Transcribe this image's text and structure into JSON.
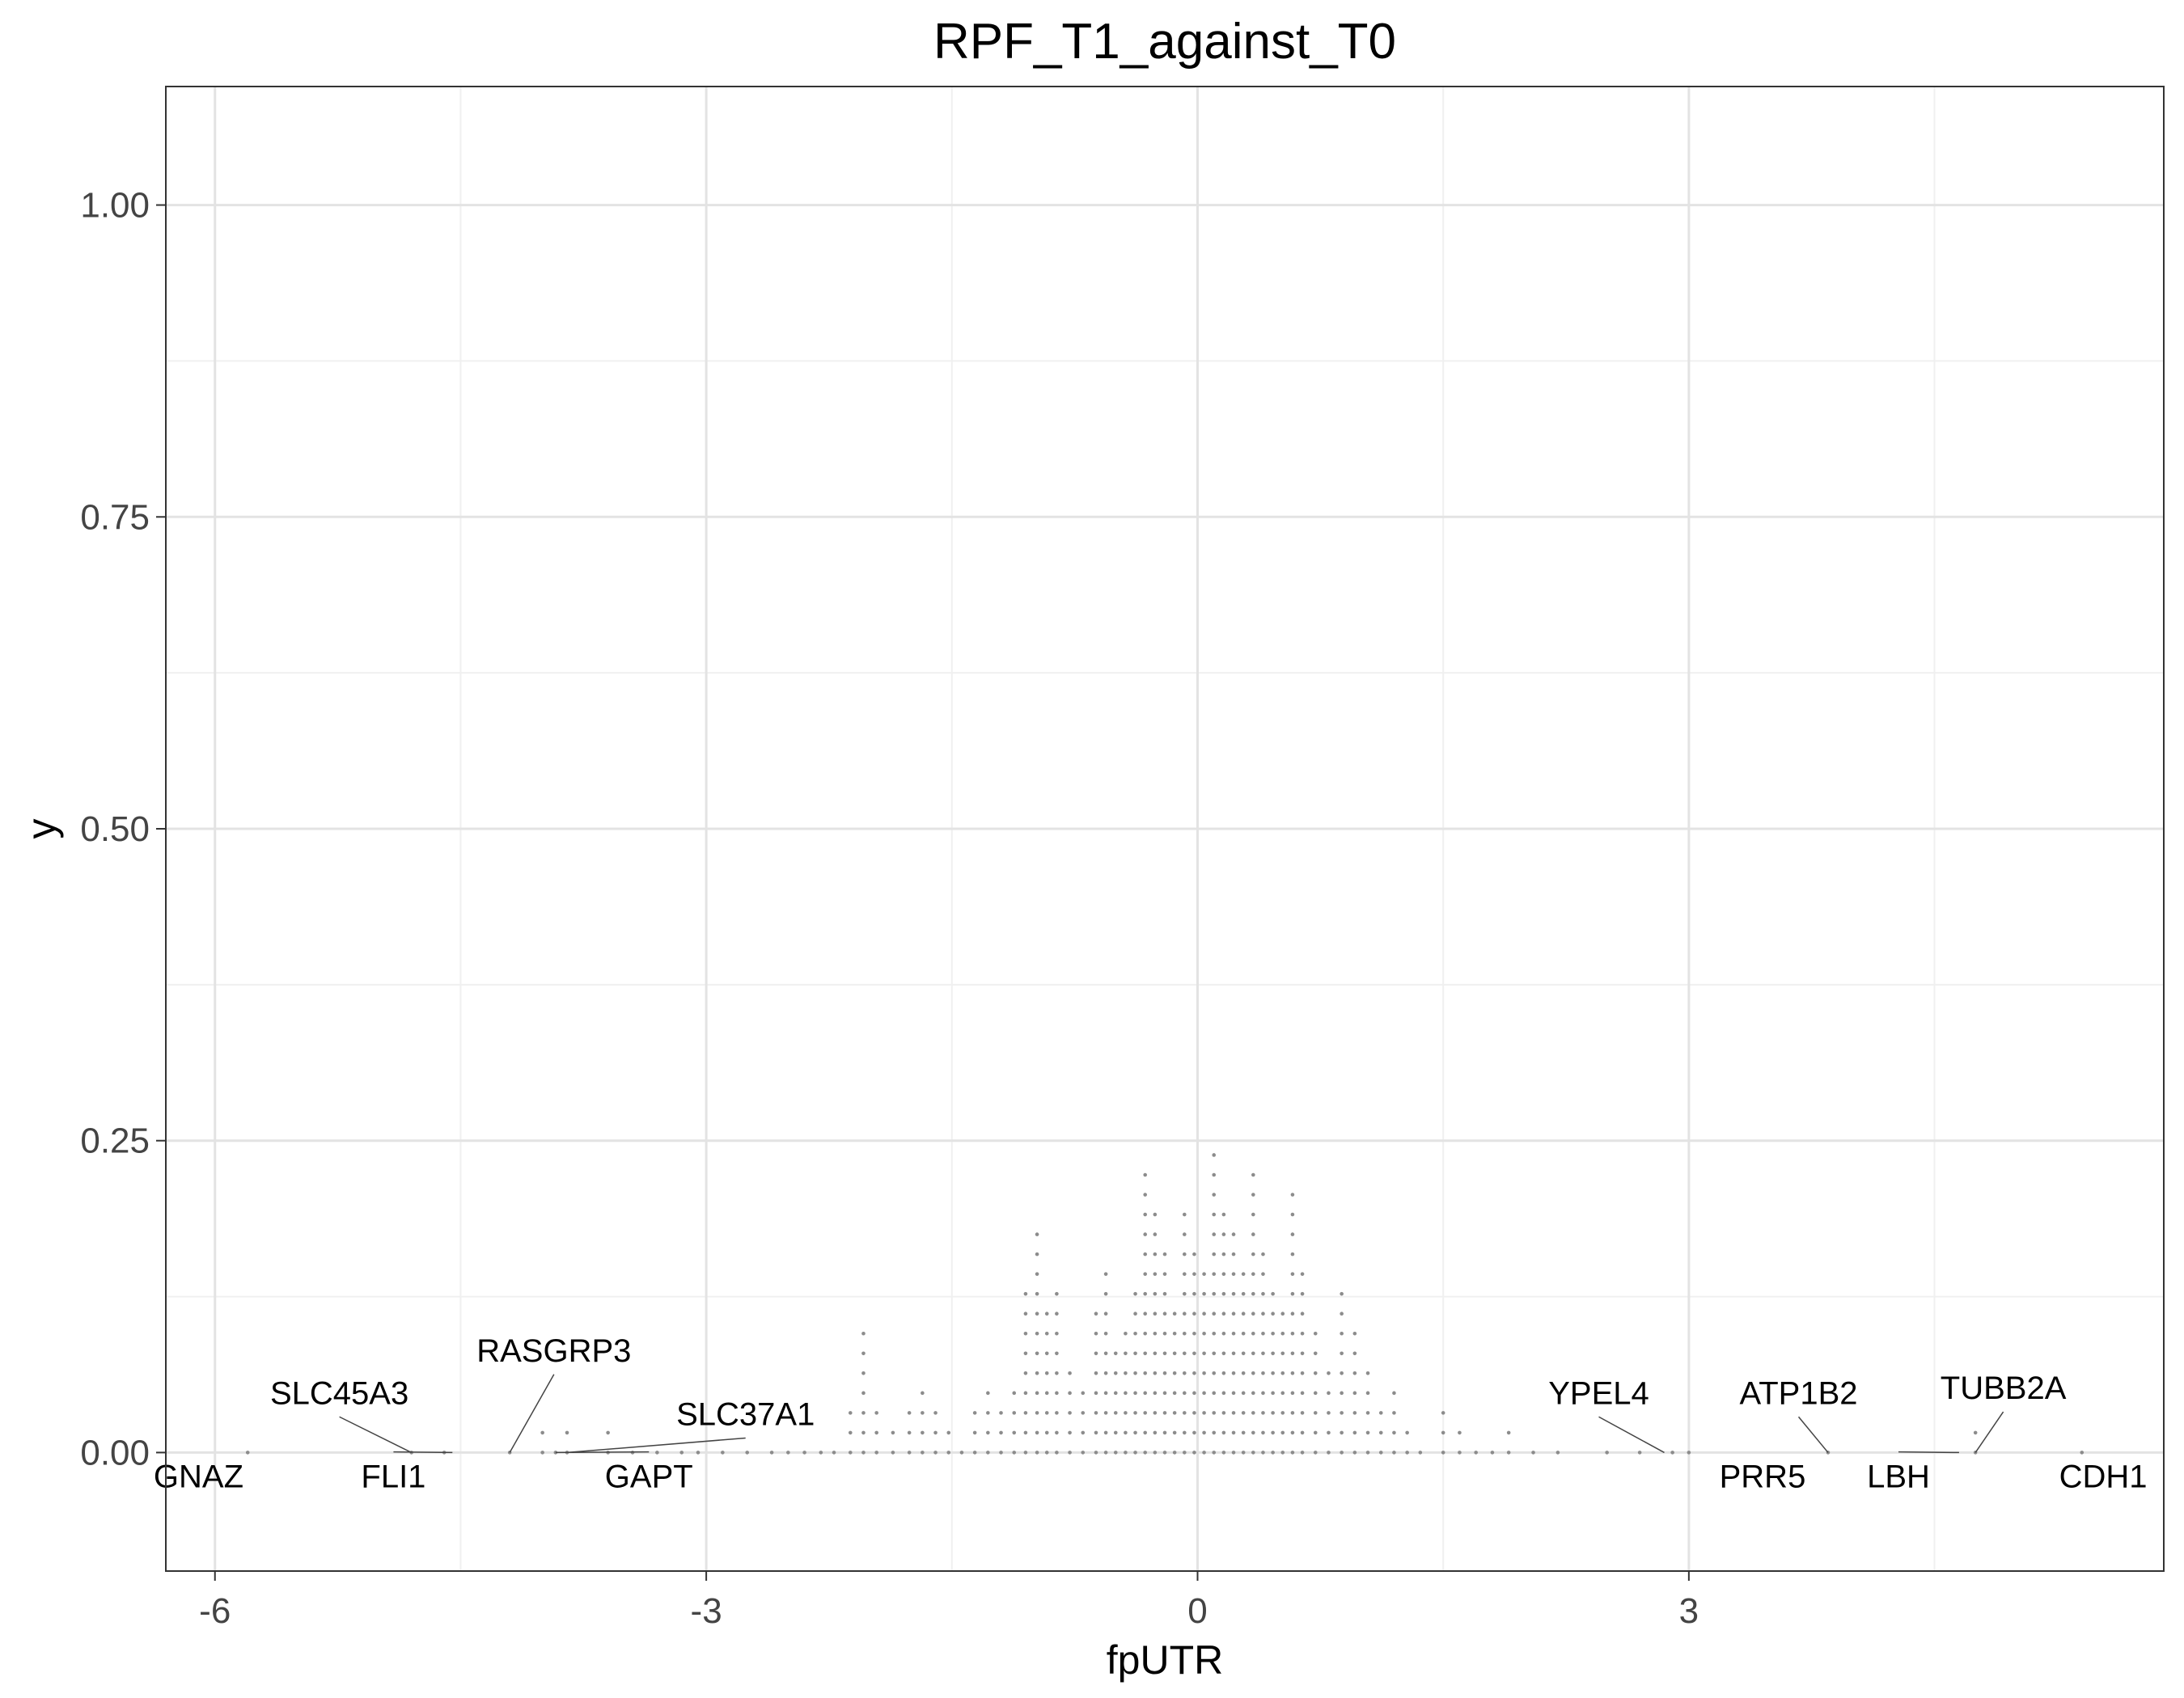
{
  "chart_data": {
    "type": "scatter",
    "title": "RPF_T1_against_T0",
    "xlabel": "fpUTR",
    "ylabel": "y",
    "xlim": [
      -6.3,
      5.9
    ],
    "ylim": [
      -0.095,
      1.095
    ],
    "x_ticks": [
      {
        "value": -6,
        "label": "-6"
      },
      {
        "value": -3,
        "label": "-3"
      },
      {
        "value": 0,
        "label": "0"
      },
      {
        "value": 3,
        "label": "3"
      }
    ],
    "y_ticks": [
      {
        "value": 0,
        "label": "0.00"
      },
      {
        "value": 0.25,
        "label": "0.25"
      },
      {
        "value": 0.5,
        "label": "0.50"
      },
      {
        "value": 0.75,
        "label": "0.75"
      },
      {
        "value": 1.0,
        "label": "1.00"
      }
    ],
    "grid": true,
    "point_color": "#8c8c8c",
    "dot_stack_step": 0.0159,
    "stacks": [
      {
        "x": -5.8,
        "n": 1
      },
      {
        "x": -4.8,
        "n": 1
      },
      {
        "x": -4.6,
        "n": 1
      },
      {
        "x": -4.2,
        "n": 1
      },
      {
        "x": -4.0,
        "n": 2
      },
      {
        "x": -3.92,
        "n": 1
      },
      {
        "x": -3.85,
        "n": 2
      },
      {
        "x": -3.6,
        "n": 2
      },
      {
        "x": -3.45,
        "n": 1
      },
      {
        "x": -3.3,
        "n": 1
      },
      {
        "x": -3.15,
        "n": 1
      },
      {
        "x": -3.05,
        "n": 1
      },
      {
        "x": -2.9,
        "n": 1
      },
      {
        "x": -2.75,
        "n": 1
      },
      {
        "x": -2.6,
        "n": 1
      },
      {
        "x": -2.5,
        "n": 1
      },
      {
        "x": -2.4,
        "n": 1
      },
      {
        "x": -2.3,
        "n": 1
      },
      {
        "x": -2.22,
        "n": 1
      },
      {
        "x": -2.12,
        "n": 3
      },
      {
        "x": -2.04,
        "n": 7
      },
      {
        "x": -1.96,
        "n": 3
      },
      {
        "x": -1.86,
        "n": 2
      },
      {
        "x": -1.76,
        "n": 3
      },
      {
        "x": -1.68,
        "n": 4
      },
      {
        "x": -1.6,
        "n": 3
      },
      {
        "x": -1.52,
        "n": 2
      },
      {
        "x": -1.44,
        "n": 1
      },
      {
        "x": -1.36,
        "n": 3
      },
      {
        "x": -1.28,
        "n": 4
      },
      {
        "x": -1.2,
        "n": 3
      },
      {
        "x": -1.12,
        "n": 4
      },
      {
        "x": -1.05,
        "n": 9
      },
      {
        "x": -0.98,
        "n": 12
      },
      {
        "x": -0.92,
        "n": 8
      },
      {
        "x": -0.86,
        "n": 9
      },
      {
        "x": -0.78,
        "n": 5
      },
      {
        "x": -0.7,
        "n": 4
      },
      {
        "x": -0.62,
        "n": 8
      },
      {
        "x": -0.56,
        "n": 10
      },
      {
        "x": -0.5,
        "n": 6
      },
      {
        "x": -0.44,
        "n": 7
      },
      {
        "x": -0.38,
        "n": 9
      },
      {
        "x": -0.32,
        "n": 15
      },
      {
        "x": -0.26,
        "n": 13
      },
      {
        "x": -0.2,
        "n": 11
      },
      {
        "x": -0.14,
        "n": 8
      },
      {
        "x": -0.08,
        "n": 13
      },
      {
        "x": -0.02,
        "n": 11
      },
      {
        "x": 0.04,
        "n": 10
      },
      {
        "x": 0.1,
        "n": 16
      },
      {
        "x": 0.16,
        "n": 13
      },
      {
        "x": 0.22,
        "n": 12
      },
      {
        "x": 0.28,
        "n": 10
      },
      {
        "x": 0.34,
        "n": 15
      },
      {
        "x": 0.4,
        "n": 11
      },
      {
        "x": 0.46,
        "n": 9
      },
      {
        "x": 0.52,
        "n": 8
      },
      {
        "x": 0.58,
        "n": 14
      },
      {
        "x": 0.64,
        "n": 10
      },
      {
        "x": 0.72,
        "n": 7
      },
      {
        "x": 0.8,
        "n": 5
      },
      {
        "x": 0.88,
        "n": 9
      },
      {
        "x": 0.96,
        "n": 7
      },
      {
        "x": 1.04,
        "n": 5
      },
      {
        "x": 1.12,
        "n": 3
      },
      {
        "x": 1.2,
        "n": 4
      },
      {
        "x": 1.28,
        "n": 2
      },
      {
        "x": 1.36,
        "n": 1
      },
      {
        "x": 1.5,
        "n": 3
      },
      {
        "x": 1.6,
        "n": 2
      },
      {
        "x": 1.7,
        "n": 1
      },
      {
        "x": 1.8,
        "n": 1
      },
      {
        "x": 1.9,
        "n": 2
      },
      {
        "x": 2.05,
        "n": 1
      },
      {
        "x": 2.2,
        "n": 1
      },
      {
        "x": 2.5,
        "n": 1
      },
      {
        "x": 2.7,
        "n": 1
      },
      {
        "x": 2.9,
        "n": 1
      },
      {
        "x": 3.0,
        "n": 1
      },
      {
        "x": 3.85,
        "n": 1
      },
      {
        "x": 4.75,
        "n": 2
      },
      {
        "x": 5.4,
        "n": 1
      }
    ],
    "annotations": [
      {
        "text": "GNAZ",
        "x": -5.8,
        "y": 0.0,
        "label_x": -6.1,
        "label_y": -0.028,
        "connector": false
      },
      {
        "text": "SLC45A3",
        "x": -4.8,
        "y": 0.0,
        "label_x": -5.24,
        "label_y": 0.039,
        "connector": true
      },
      {
        "text": "FLI1",
        "x": -4.55,
        "y": 0.0,
        "label_x": -4.91,
        "label_y": -0.028,
        "connector": true
      },
      {
        "text": "RASGRP3",
        "x": -4.2,
        "y": 0.0,
        "label_x": -3.93,
        "label_y": 0.073,
        "connector": true
      },
      {
        "text": "SLC37A1",
        "x": -3.85,
        "y": 0.0,
        "label_x": -2.76,
        "label_y": 0.022,
        "connector": true
      },
      {
        "text": "GAPT",
        "x": -3.92,
        "y": 0.0,
        "label_x": -3.35,
        "label_y": -0.028,
        "connector": true
      },
      {
        "text": "YPEL4",
        "x": 2.85,
        "y": 0.0,
        "label_x": 2.45,
        "label_y": 0.039,
        "connector": true
      },
      {
        "text": "PRR5",
        "x": 3.0,
        "y": 0.0,
        "label_x": 3.45,
        "label_y": -0.028,
        "connector": false
      },
      {
        "text": "ATP1B2",
        "x": 3.85,
        "y": 0.0,
        "label_x": 3.67,
        "label_y": 0.039,
        "connector": true
      },
      {
        "text": "LBH",
        "x": 4.65,
        "y": 0.0,
        "label_x": 4.28,
        "label_y": -0.028,
        "connector": true
      },
      {
        "text": "TUBB2A",
        "x": 4.75,
        "y": 0.0,
        "label_x": 4.92,
        "label_y": 0.043,
        "connector": true
      },
      {
        "text": "CDH1",
        "x": 5.4,
        "y": 0.0,
        "label_x": 5.53,
        "label_y": -0.028,
        "connector": false
      }
    ]
  }
}
